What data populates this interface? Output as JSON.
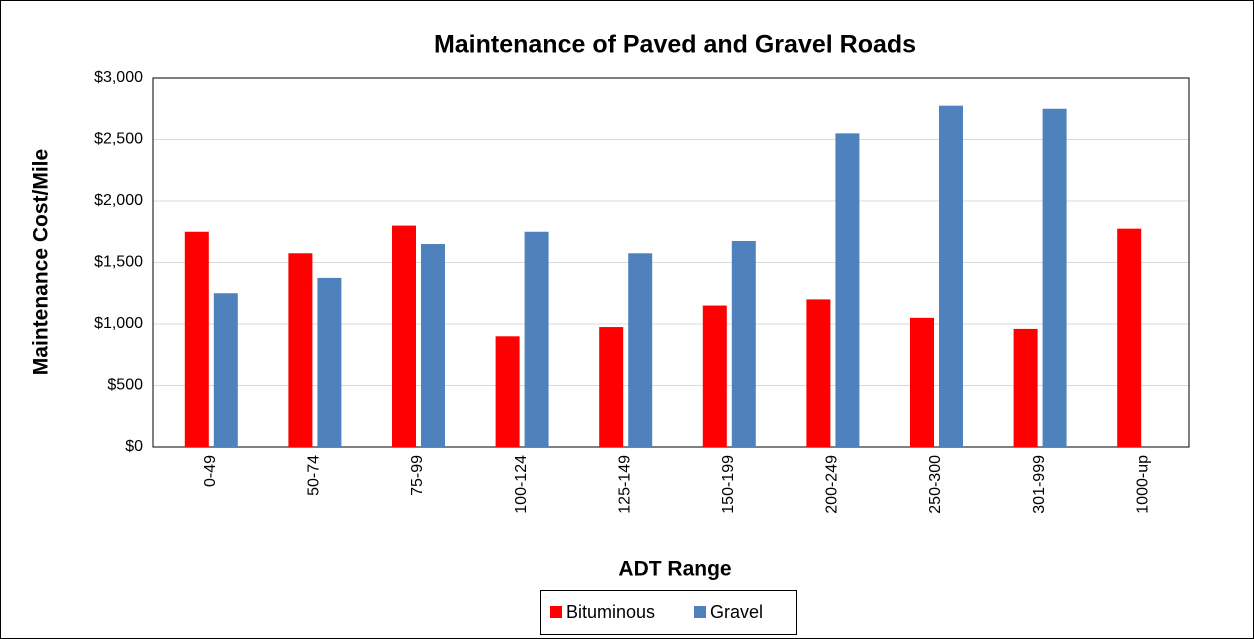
{
  "chart_data": {
    "type": "bar",
    "title": "Maintenance of Paved and Gravel Roads",
    "x_label": "ADT Range",
    "y_label": "Maintenance Cost/Mile",
    "categories": [
      "0-49",
      "50-74",
      "75-99",
      "100-124",
      "125-149",
      "150-199",
      "200-249",
      "250-300",
      "301-999",
      "1000-up"
    ],
    "series": [
      {
        "name": "Bituminous",
        "color": "#ff0000",
        "values": [
          1750,
          1575,
          1800,
          900,
          975,
          1150,
          1200,
          1050,
          960,
          1775
        ]
      },
      {
        "name": "Gravel",
        "color": "#4f81bd",
        "values": [
          1250,
          1375,
          1650,
          1750,
          1575,
          1675,
          2550,
          2775,
          2750,
          null
        ]
      }
    ],
    "ylim": [
      0,
      3000
    ],
    "yticks": [
      {
        "value": 0,
        "label": "$0"
      },
      {
        "value": 500,
        "label": "$500"
      },
      {
        "value": 1000,
        "label": "$1,000"
      },
      {
        "value": 1500,
        "label": "$1,500"
      },
      {
        "value": 2000,
        "label": "$2,000"
      },
      {
        "value": 2500,
        "label": "$2,500"
      },
      {
        "value": 3000,
        "label": "$3,000"
      }
    ],
    "grid": true,
    "legend": "bottom"
  }
}
